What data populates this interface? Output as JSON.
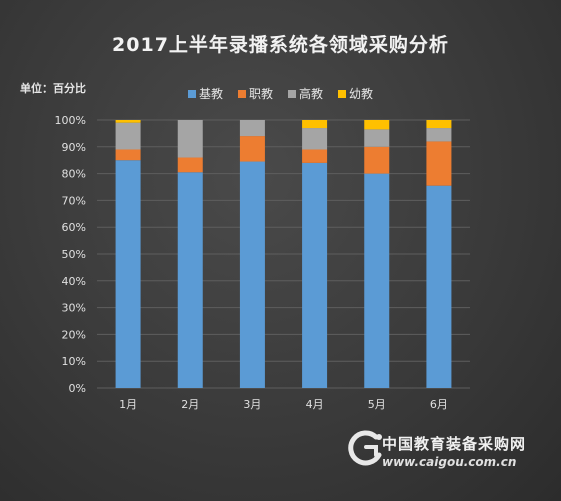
{
  "chart_data": {
    "type": "bar",
    "stacked": true,
    "title": "2017上半年录播系统各领域采购分析",
    "unit_label": "单位：百分比",
    "categories": [
      "1月",
      "2月",
      "3月",
      "4月",
      "5月",
      "6月"
    ],
    "series": [
      {
        "name": "基教",
        "color": "#5b9bd5",
        "values": [
          85,
          80.5,
          84.5,
          84,
          80,
          75.5
        ]
      },
      {
        "name": "职教",
        "color": "#ed7d31",
        "values": [
          4,
          5.5,
          9.5,
          5,
          10,
          16.5
        ]
      },
      {
        "name": "高教",
        "color": "#a5a5a5",
        "values": [
          10,
          14,
          6,
          8,
          6.5,
          5
        ]
      },
      {
        "name": "幼教",
        "color": "#ffc000",
        "values": [
          1,
          0,
          0,
          3,
          3.5,
          3
        ]
      }
    ],
    "y_ticks": [
      "0%",
      "10%",
      "20%",
      "30%",
      "40%",
      "50%",
      "60%",
      "70%",
      "80%",
      "90%",
      "100%"
    ],
    "ylim": [
      0,
      100
    ],
    "grid": true,
    "legend_position": "top"
  },
  "watermark": {
    "name": "中国教育装备采购网",
    "url": "www.caigou.com.cn"
  }
}
